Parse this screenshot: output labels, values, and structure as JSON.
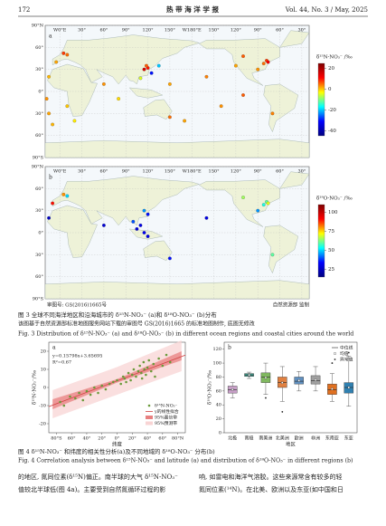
{
  "header": {
    "page": "172",
    "journal": "热 带 海 洋 学 报",
    "issue": "Vol. 44, No. 3 / May, 2025"
  },
  "figure3": {
    "lon_labels": [
      {
        "value": 0,
        "label": "W0°E"
      },
      {
        "value": 30,
        "label": "30°"
      },
      {
        "value": 60,
        "label": "60°"
      },
      {
        "value": 90,
        "label": "90°"
      },
      {
        "value": 120,
        "label": "120°"
      },
      {
        "value": 150,
        "label": "150°"
      },
      {
        "value": 180,
        "label": "W180°E"
      },
      {
        "value": 210,
        "label": "150°"
      },
      {
        "value": 240,
        "label": "120°"
      },
      {
        "value": 270,
        "label": "90°"
      },
      {
        "value": 300,
        "label": "60°"
      },
      {
        "value": 330,
        "label": "30°"
      }
    ],
    "lat_labels": [
      {
        "value": 90,
        "label": "90°N"
      },
      {
        "value": 60,
        "label": "60°"
      },
      {
        "value": 30,
        "label": "30°"
      },
      {
        "value": 0,
        "label": "0°"
      },
      {
        "value": -30,
        "label": "30°"
      },
      {
        "value": -60,
        "label": "60°"
      },
      {
        "value": -90,
        "label": "90°S"
      }
    ],
    "maps": [
      {
        "panel": "a",
        "colorbar_title": "δ¹⁵N-NO₃⁻ /‰",
        "clim": [
          -45,
          25
        ],
        "cticks": [
          20,
          0,
          -20,
          -40
        ],
        "points": [
          {
            "lon": 282,
            "lat": 42,
            "value": 8
          },
          {
            "lon": 278,
            "lat": 38,
            "value": 5
          },
          {
            "lon": 284,
            "lat": 40,
            "value": 12
          },
          {
            "lon": 270,
            "lat": 30,
            "value": 3
          },
          {
            "lon": 240,
            "lat": 35,
            "value": 2
          },
          {
            "lon": 250,
            "lat": 48,
            "value": 6
          },
          {
            "lon": 10,
            "lat": 50,
            "value": 5
          },
          {
            "lon": 5,
            "lat": 52,
            "value": 8
          },
          {
            "lon": -5,
            "lat": 40,
            "value": 2
          },
          {
            "lon": 115,
            "lat": 30,
            "value": 15
          },
          {
            "lon": 120,
            "lat": 32,
            "value": 10
          },
          {
            "lon": 118,
            "lat": 35,
            "value": 6
          },
          {
            "lon": 125,
            "lat": 25,
            "value": -30
          },
          {
            "lon": 135,
            "lat": 35,
            "value": -20
          },
          {
            "lon": 110,
            "lat": 18,
            "value": -5
          },
          {
            "lon": 150,
            "lat": 10,
            "value": 2
          },
          {
            "lon": -15,
            "lat": 20,
            "value": 1
          },
          {
            "lon": -18,
            "lat": -10,
            "value": 3
          },
          {
            "lon": -15,
            "lat": -30,
            "value": 2
          },
          {
            "lon": 10,
            "lat": -20,
            "value": 0
          },
          {
            "lon": 150,
            "lat": -35,
            "value": 5
          },
          {
            "lon": 290,
            "lat": -30,
            "value": 4
          },
          {
            "lon": 20,
            "lat": -40,
            "value": -2
          },
          {
            "lon": -10,
            "lat": -45,
            "value": 1
          },
          {
            "lon": 170,
            "lat": -40,
            "value": 2
          },
          {
            "lon": 250,
            "lat": -5,
            "value": 6
          },
          {
            "lon": 60,
            "lat": 10,
            "value": 3
          },
          {
            "lon": 80,
            "lat": -10,
            "value": -1
          },
          {
            "lon": 200,
            "lat": 20,
            "value": 4
          },
          {
            "lon": 220,
            "lat": -20,
            "value": 3
          }
        ]
      },
      {
        "panel": "b",
        "colorbar_title": "δ¹⁸O-NO₃⁻ /‰",
        "clim": [
          15,
          110
        ],
        "cticks": [
          100,
          75,
          50,
          25
        ],
        "points": [
          {
            "lon": 282,
            "lat": 42,
            "value": 60
          },
          {
            "lon": 278,
            "lat": 38,
            "value": 55
          },
          {
            "lon": 284,
            "lat": 40,
            "value": 70
          },
          {
            "lon": 270,
            "lat": 30,
            "value": 45
          },
          {
            "lon": 250,
            "lat": 48,
            "value": 65
          },
          {
            "lon": 10,
            "lat": 50,
            "value": 50
          },
          {
            "lon": 5,
            "lat": 52,
            "value": 80
          },
          {
            "lon": 115,
            "lat": 30,
            "value": 45
          },
          {
            "lon": 120,
            "lat": 25,
            "value": 35
          },
          {
            "lon": 110,
            "lat": 10,
            "value": 30
          },
          {
            "lon": 105,
            "lat": 5,
            "value": 28
          },
          {
            "lon": 115,
            "lat": 0,
            "value": 32
          },
          {
            "lon": 120,
            "lat": -5,
            "value": 30
          },
          {
            "lon": 100,
            "lat": 15,
            "value": 40
          },
          {
            "lon": -10,
            "lat": 40,
            "value": 90
          },
          {
            "lon": -15,
            "lat": 20,
            "value": 25
          },
          {
            "lon": 150,
            "lat": -35,
            "value": 35
          },
          {
            "lon": 290,
            "lat": -30,
            "value": 60
          },
          {
            "lon": 200,
            "lat": 20,
            "value": 30
          },
          {
            "lon": 60,
            "lat": 10,
            "value": 28
          }
        ]
      }
    ],
    "approval": "审图号: GS(2016)1665号",
    "supervisor": "自然资源部 监制",
    "caption_cn": "图 3 全球不同海洋地区和沿海城市的 δ¹⁵N-NO₃⁻ (a)和 δ¹⁸O-NO₃⁻ (b)分布",
    "note_cn": "该图基于自然资源部标准地图服务网站下载的审图号 GS(2016)1665 的标准地图制作, 底图无修改",
    "caption_en": "Fig. 3 Distribution of δ¹⁵N-NO₃⁻ (a) and δ¹⁸O-NO₃⁻ (b) in different ocean regions and coastal cities around the world"
  },
  "figure4": {
    "a": {
      "type": "scatter",
      "panel": "a",
      "equation": "y=0.15798x+3.65695",
      "r2": "R²=0.67",
      "fit": {
        "slope": 0.15798,
        "intercept": 3.65695
      },
      "x_label": "纬度",
      "y_label": "δ¹⁵N-NO₃⁻/‰",
      "xlim": [
        -90,
        90
      ],
      "ylim": [
        -25,
        25
      ],
      "xticks": [
        {
          "value": -80,
          "label": "80°S"
        },
        {
          "value": -60,
          "label": "60°"
        },
        {
          "value": -40,
          "label": "40°"
        },
        {
          "value": -20,
          "label": "20°"
        },
        {
          "value": 0,
          "label": "0°"
        },
        {
          "value": 20,
          "label": "20°"
        },
        {
          "value": 40,
          "label": "40°"
        },
        {
          "value": 60,
          "label": "60°"
        },
        {
          "value": 80,
          "label": "80°N"
        }
      ],
      "yticks": [
        -20,
        -10,
        0,
        10,
        20
      ],
      "x": [
        -75,
        -70,
        -62,
        -55,
        -50,
        -45,
        -40,
        -35,
        -30,
        -25,
        -20,
        -15,
        -10,
        -5,
        0,
        5,
        8,
        10,
        12,
        15,
        18,
        20,
        22,
        25,
        28,
        30,
        32,
        33,
        35,
        36,
        38,
        40,
        42,
        45,
        48,
        50,
        55,
        60,
        65,
        70
      ],
      "y": [
        -8,
        -10,
        -5,
        -6,
        -3,
        -7,
        -2,
        -4,
        0,
        -3,
        1,
        -1,
        2,
        3,
        4,
        2,
        6,
        5,
        3,
        8,
        4,
        7,
        10,
        6,
        9,
        12,
        8,
        5,
        14,
        10,
        7,
        11,
        15,
        9,
        13,
        6,
        16,
        12,
        18,
        14
      ],
      "point_color": "#6a9a3a",
      "fit_color": "#d04040",
      "bands": {
        "x": [
          -85,
          0,
          85
        ],
        "confidence_lower": [
          -12,
          2.7,
          15
        ],
        "confidence_upper": [
          -6.5,
          4.6,
          20
        ],
        "prediction_lower": [
          -17,
          -4,
          9
        ],
        "prediction_upper": [
          -1.5,
          11.3,
          26
        ],
        "confidence_color": "#e88080",
        "prediction_color": "#f8d4d4"
      },
      "legend": [
        "δ¹⁵N-NO₃⁻",
        "y的线性拟合",
        "95%置信带",
        "95%预测带"
      ]
    },
    "b": {
      "type": "box",
      "panel": "b",
      "x_label": "地区",
      "y_label": "δ¹⁸O-NO₃⁻/‰",
      "ylim": [
        0,
        130
      ],
      "yticks": [
        0,
        20,
        40,
        60,
        80,
        100,
        120
      ],
      "categories": [
        "北极",
        "南极",
        "南美洲",
        "北美洲",
        "欧洲",
        "非洲",
        "东南亚",
        "东亚"
      ],
      "boxes": [
        {
          "min": 50,
          "q1": 57,
          "median": 62,
          "q3": 67,
          "max": 72,
          "mean": 62,
          "outliers": [],
          "color": "#c8a0c8"
        },
        {
          "min": 78,
          "q1": 81,
          "median": 83,
          "q3": 85,
          "max": 87,
          "mean": 83,
          "outliers": [],
          "color": "#40a090"
        },
        {
          "min": 55,
          "q1": 72,
          "median": 80,
          "q3": 86,
          "max": 100,
          "mean": 79,
          "outliers": [
            50
          ],
          "color": "#80b860"
        },
        {
          "min": 45,
          "q1": 65,
          "median": 72,
          "q3": 80,
          "max": 95,
          "mean": 72,
          "outliers": [
            30
          ],
          "color": "#e08040"
        },
        {
          "min": 60,
          "q1": 70,
          "median": 74,
          "q3": 80,
          "max": 88,
          "mean": 75,
          "outliers": [],
          "color": "#6090c0"
        },
        {
          "min": 60,
          "q1": 70,
          "median": 75,
          "q3": 82,
          "max": 95,
          "mean": 76,
          "outliers": [],
          "color": "#a0a0a0"
        },
        {
          "min": 45,
          "q1": 55,
          "median": 62,
          "q3": 70,
          "max": 85,
          "mean": 63,
          "outliers": [
            100
          ],
          "color": "#e07020"
        },
        {
          "min": 38,
          "q1": 57,
          "median": 65,
          "q3": 72,
          "max": 110,
          "mean": 65,
          "outliers": [
            115
          ],
          "color": "#3080b0"
        }
      ],
      "legend": [
        "中位线",
        "均值",
        "异常值"
      ]
    },
    "caption_cn": "图 4 δ¹⁵N-NO₃⁻ 和纬度的相关性分析(a)及不同地域的 δ¹⁸O-NO₃⁻ 分布(b)",
    "caption_en": "Fig. 4 Correlation analysis between δ¹⁵N-NO₃⁻ and latitude (a) and distribution of δ¹⁸O-NO₃⁻ in different regions (b)"
  },
  "body": {
    "left": [
      "的地区, 氮同位素(δ¹⁵N)偏正。南半球的大气 δ¹⁵N-NO₃⁻",
      "值较北半球低(图 4a)。主要受到自然氮循环过程的影"
    ],
    "right": [
      "响, 如雷电和海洋气溶胶。这些来源常含有较多的轻",
      "氮同位素(¹⁴N)。在北美、欧洲以及东亚(如中国和日"
    ]
  }
}
